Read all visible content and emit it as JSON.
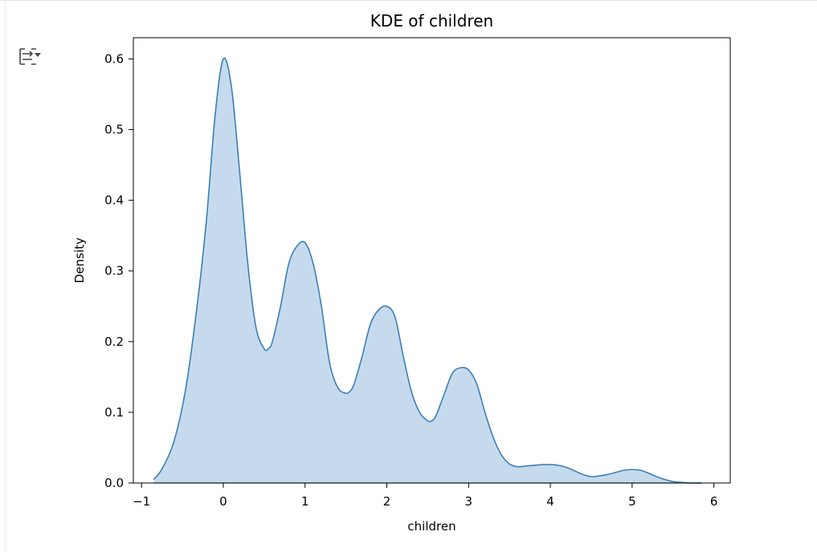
{
  "toolbar": {
    "output_toggle_icon": "output-collapse-icon"
  },
  "colors": {
    "line": "#3c7fb6",
    "fill": "#c5dbed",
    "axis": "#000000"
  },
  "chart_data": {
    "type": "area",
    "title": "KDE of children",
    "xlabel": "children",
    "ylabel": "Density",
    "xlim": [
      -1.1,
      6.2
    ],
    "ylim": [
      0,
      0.63
    ],
    "xticks": [
      -1,
      0,
      1,
      2,
      3,
      4,
      5,
      6
    ],
    "xtick_labels": [
      "−1",
      "0",
      "1",
      "2",
      "3",
      "4",
      "5",
      "6"
    ],
    "yticks": [
      0.0,
      0.1,
      0.2,
      0.3,
      0.4,
      0.5,
      0.6
    ],
    "ytick_labels": [
      "0.0",
      "0.1",
      "0.2",
      "0.3",
      "0.4",
      "0.5",
      "0.6"
    ],
    "grid": false,
    "series": [
      {
        "x": [
          -0.85,
          -0.75,
          -0.6,
          -0.45,
          -0.3,
          -0.2,
          -0.1,
          0.0,
          0.1,
          0.2,
          0.3,
          0.4,
          0.5,
          0.55,
          0.6,
          0.7,
          0.8,
          0.9,
          1.0,
          1.1,
          1.2,
          1.3,
          1.4,
          1.5,
          1.55,
          1.6,
          1.7,
          1.8,
          1.9,
          2.0,
          2.1,
          2.2,
          2.3,
          2.4,
          2.5,
          2.55,
          2.6,
          2.7,
          2.8,
          2.9,
          3.0,
          3.1,
          3.2,
          3.3,
          3.4,
          3.5,
          3.6,
          3.7,
          3.8,
          3.9,
          4.0,
          4.1,
          4.2,
          4.3,
          4.4,
          4.5,
          4.6,
          4.7,
          4.8,
          4.9,
          5.0,
          5.1,
          5.2,
          5.3,
          5.4,
          5.5,
          5.6,
          5.7,
          5.85
        ],
        "y": [
          0.005,
          0.02,
          0.06,
          0.14,
          0.27,
          0.38,
          0.52,
          0.6,
          0.56,
          0.44,
          0.31,
          0.22,
          0.19,
          0.19,
          0.2,
          0.25,
          0.31,
          0.335,
          0.34,
          0.31,
          0.25,
          0.17,
          0.135,
          0.127,
          0.13,
          0.14,
          0.18,
          0.225,
          0.245,
          0.25,
          0.235,
          0.18,
          0.13,
          0.1,
          0.088,
          0.088,
          0.095,
          0.125,
          0.155,
          0.163,
          0.16,
          0.14,
          0.1,
          0.065,
          0.04,
          0.027,
          0.023,
          0.024,
          0.025,
          0.026,
          0.026,
          0.025,
          0.022,
          0.017,
          0.012,
          0.009,
          0.01,
          0.012,
          0.015,
          0.018,
          0.019,
          0.018,
          0.014,
          0.009,
          0.005,
          0.002,
          0.001,
          0.0,
          0.0
        ]
      }
    ]
  }
}
